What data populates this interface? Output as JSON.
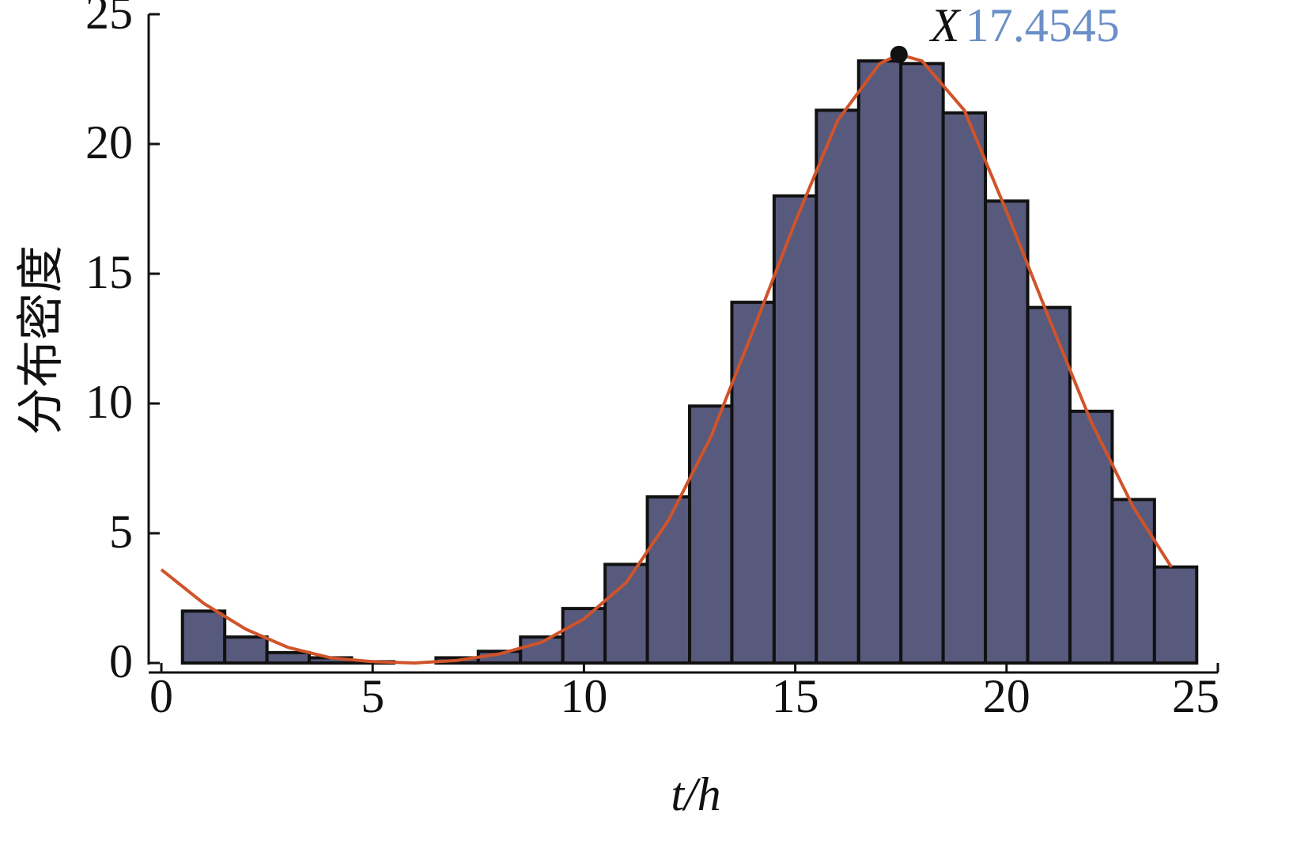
{
  "chart_data": {
    "type": "histogram",
    "y_label": "分布密度",
    "x_label": "t/h",
    "bins": [
      0.5,
      1.5,
      2.5,
      3.5,
      4.5,
      5.5,
      6.5,
      7.5,
      8.5,
      9.5,
      10.5,
      11.5,
      12.5,
      13.5,
      14.5,
      15.5,
      16.5,
      17.5,
      18.5,
      19.5,
      20.5,
      21.5,
      22.5,
      23.5,
      24.5
    ],
    "values": [
      2.0,
      1.0,
      0.4,
      0.2,
      0.05,
      0.0,
      0.2,
      0.45,
      1.0,
      2.1,
      3.8,
      6.4,
      9.9,
      13.9,
      18.0,
      21.3,
      23.2,
      23.1,
      21.2,
      17.8,
      13.7,
      9.7,
      6.3,
      3.7
    ],
    "color": "#575a7c",
    "curve": {
      "color": "#d0532a",
      "x": [
        0,
        1,
        2,
        3,
        4,
        5,
        6,
        7,
        8,
        9,
        10,
        11,
        12,
        13,
        14,
        15,
        16,
        17,
        17.4545,
        18,
        19,
        20,
        21,
        22,
        23,
        23.9
      ],
      "values": [
        3.6,
        2.3,
        1.3,
        0.6,
        0.2,
        0.05,
        0.0,
        0.1,
        0.35,
        0.8,
        1.7,
        3.1,
        5.5,
        8.7,
        12.8,
        17.0,
        20.9,
        23.1,
        23.45,
        23.2,
        21.3,
        17.4,
        13.3,
        9.3,
        6.0,
        3.7
      ]
    },
    "annotation": {
      "label": "X",
      "value_text": "17.4545",
      "x": 17.4545,
      "y": 23.45,
      "value_color": "#6b8fc7"
    },
    "xlim": [
      -0.3,
      25
    ],
    "ylim": [
      0,
      25
    ],
    "xticks": [
      0,
      5,
      10,
      15,
      20,
      25
    ],
    "yticks": [
      0,
      5,
      10,
      15,
      20,
      25
    ]
  }
}
